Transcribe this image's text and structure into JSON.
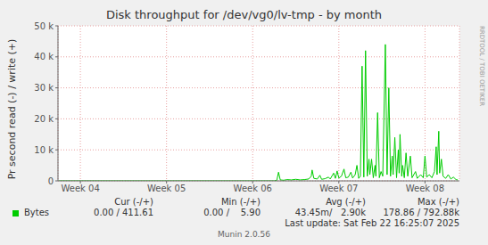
{
  "chart_data": {
    "type": "line",
    "title": "Disk throughput for /dev/vg0/lv-tmp - by month",
    "y_label": "Pr second read (-) / write (+)",
    "x": [
      3.75,
      4.0,
      4.5,
      5.0,
      5.5,
      6.0,
      6.25,
      6.28,
      6.3,
      6.32,
      6.36,
      6.4,
      6.45,
      6.5,
      6.55,
      6.6,
      6.65,
      6.68,
      6.69,
      6.71,
      6.75,
      6.78,
      6.8,
      6.84,
      6.88,
      6.9,
      6.94,
      6.96,
      6.98,
      7.0,
      7.03,
      7.06,
      7.08,
      7.11,
      7.14,
      7.16,
      7.19,
      7.21,
      7.23,
      7.25,
      7.27,
      7.29,
      7.31,
      7.33,
      7.35,
      7.36,
      7.38,
      7.4,
      7.42,
      7.43,
      7.45,
      7.47,
      7.49,
      7.51,
      7.54,
      7.56,
      7.58,
      7.6,
      7.62,
      7.63,
      7.65,
      7.67,
      7.69,
      7.7,
      7.71,
      7.73,
      7.74,
      7.76,
      7.78,
      7.8,
      7.83,
      7.85,
      7.89,
      7.91,
      7.95,
      7.98,
      8.0,
      8.02,
      8.05,
      8.08,
      8.11,
      8.13,
      8.14,
      8.16,
      8.17,
      8.19,
      8.21,
      8.24,
      8.27,
      8.3,
      8.33,
      8.36,
      8.38
    ],
    "series": [
      {
        "name": "Bytes",
        "color": "#00cc00",
        "values": [
          0,
          0,
          0,
          0,
          0,
          0,
          0,
          200,
          2800,
          300,
          200,
          400,
          300,
          500,
          300,
          400,
          600,
          1500,
          3500,
          800,
          600,
          1800,
          500,
          700,
          1200,
          600,
          2500,
          800,
          3200,
          900,
          1500,
          3800,
          1000,
          1200,
          2800,
          900,
          2000,
          5000,
          800,
          1500,
          37000,
          1200,
          42000,
          1500,
          7000,
          2000,
          7000,
          1000,
          5000,
          1500,
          22000,
          1000,
          3000,
          1500,
          44000,
          2000,
          30000,
          1500,
          8000,
          2000,
          14000,
          1000,
          10000,
          2500,
          15000,
          1500,
          5000,
          1000,
          9000,
          1500,
          8000,
          1000,
          3000,
          800,
          2000,
          1000,
          8000,
          1200,
          2000,
          1000,
          3000,
          11000,
          2000,
          16000,
          2500,
          7000,
          1500,
          800,
          2000,
          600,
          1200,
          400,
          300
        ]
      }
    ],
    "xlim": [
      3.74,
      8.4
    ],
    "xticks": [
      {
        "value": 4,
        "label": "Week 04"
      },
      {
        "value": 5,
        "label": "Week 05"
      },
      {
        "value": 6,
        "label": "Week 06"
      },
      {
        "value": 7,
        "label": "Week 07"
      },
      {
        "value": 8,
        "label": "Week 08"
      }
    ],
    "ylim": [
      0,
      50000
    ],
    "yticks": [
      0,
      {
        "value": 10000,
        "label": "10 k"
      },
      {
        "value": 20000,
        "label": "20 k"
      },
      {
        "value": 30000,
        "label": "30 k"
      },
      {
        "value": 40000,
        "label": "40 k"
      },
      {
        "value": 50000,
        "label": "50 k"
      }
    ],
    "grid": true,
    "legend": "bottom",
    "stats_headers": [
      "Cur (-/+)",
      "Min (-/+)",
      "Avg (-/+)",
      "Max (-/+)"
    ],
    "stats_values": [
      "0.00 / 411.61",
      "0.00 /    5.90",
      "43.45m/   2.90k",
      "178.86 / 792.88k"
    ],
    "annotations": [
      "Last update: Sat Feb 22 16:25:07 2025",
      "Munin 2.0.56",
      "RRDTOOL / TOBI OETIKER"
    ]
  }
}
